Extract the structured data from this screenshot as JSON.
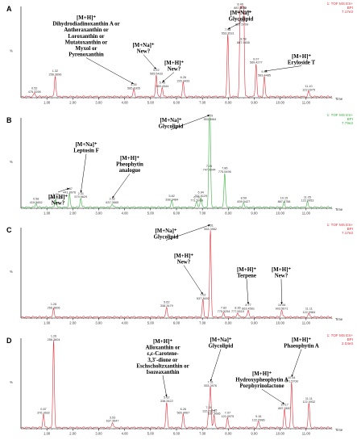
{
  "chart_data": [
    {
      "type": "line",
      "panel_label": "A",
      "color": "#e0303a",
      "header": [
        "1: TOF MS ES+",
        "BPI",
        "7.17e3"
      ],
      "y_axis_label": "%",
      "x_axis_label": "Time",
      "xlim": [
        0,
        12
      ],
      "ylim": [
        0,
        100
      ],
      "x_ticks": [
        "1.00",
        "2.00",
        "3.00",
        "4.00",
        "5.00",
        "6.00",
        "7.00",
        "8.00",
        "9.00",
        "10.00",
        "11.00"
      ],
      "peaks": [
        {
          "x": 0.52,
          "y": 4,
          "label": [
            "0.52",
            "475.3298"
          ]
        },
        {
          "x": 1.32,
          "y": 23,
          "label": [
            "1.32",
            "256.3696"
          ]
        },
        {
          "x": 4.35,
          "y": 8,
          "label": [
            "4.35",
            "585.4305"
          ]
        },
        {
          "x": 5.22,
          "y": 24,
          "label": [
            "5.22",
            "565.5433"
          ]
        },
        {
          "x": 5.45,
          "y": 10,
          "label": [
            "5.45",
            "569.4344"
          ]
        },
        {
          "x": 6.26,
          "y": 16,
          "label": [
            "6.26",
            "226.3433"
          ]
        },
        {
          "x": 7.98,
          "y": 68,
          "label": [
            "7.98",
            "553.3531"
          ]
        },
        {
          "x": 8.46,
          "y": 96,
          "label": [
            "8.46",
            "887.5772"
          ]
        },
        {
          "x": 8.52,
          "y": 78,
          "label": [
            "8.52",
            "887.5709"
          ]
        },
        {
          "x": 8.58,
          "y": 92,
          "label": [
            "8.58",
            "887.5648"
          ]
        },
        {
          "x": 8.58,
          "y": 58,
          "label": [
            "8.58",
            "887.5635"
          ]
        },
        {
          "x": 9.07,
          "y": 36,
          "label": [
            "9.07",
            "569.4277"
          ]
        },
        {
          "x": 9.39,
          "y": 22,
          "label": [
            "9.39",
            "583.4485"
          ]
        },
        {
          "x": 11.1,
          "y": 6,
          "label": [
            "11.10",
            "122.0975"
          ]
        }
      ],
      "annotations": [
        {
          "lines": [
            "[M+H]⁺",
            "Dihydrodiadinoxanthin A or",
            "Antheraxanthin or",
            "Loroxanthin or",
            "Mutatoxanthin or",
            "Myxol or",
            "Pyrenoxanthin"
          ],
          "arrow_to_x": 4.35
        },
        {
          "lines": [
            "[M+Na]⁺",
            "New?"
          ],
          "arrow_to_x": 5.22
        },
        {
          "lines": [
            "[M+H]⁺",
            "New?"
          ],
          "arrow_to_x": 5.45
        },
        {
          "lines": [
            "[M+Na]⁺",
            "Glycolipid"
          ],
          "arrow_to_x": 7.98
        },
        {
          "lines": [
            "[M+H]⁺",
            "Eryloside T"
          ],
          "arrow_to_x": 9.39
        }
      ]
    },
    {
      "type": "line",
      "panel_label": "B",
      "color": "#3cb043",
      "header": [
        "1: TOF MS ES+",
        "BPI",
        "7.79e3"
      ],
      "y_axis_label": "%",
      "x_axis_label": "Time",
      "xlim": [
        0,
        12
      ],
      "ylim": [
        0,
        100
      ],
      "x_ticks": [
        "1.00",
        "2.00",
        "3.00",
        "4.00",
        "5.00",
        "6.00",
        "7.00",
        "8.00",
        "9.00",
        "10.00",
        "11.00"
      ],
      "peaks": [
        {
          "x": 0.58,
          "y": 4,
          "label": [
            "0.58",
            "419.5652"
          ]
        },
        {
          "x": 1.34,
          "y": 9,
          "label": [
            "1.34",
            "256.3614"
          ]
        },
        {
          "x": 1.87,
          "y": 15,
          "label": [
            "1.87",
            "441.8976"
          ]
        },
        {
          "x": 2.31,
          "y": 10,
          "label": [
            "2.31",
            "579.9629"
          ]
        },
        {
          "x": 3.52,
          "y": 4,
          "label": [
            "3.52",
            "637.3665"
          ]
        },
        {
          "x": 5.82,
          "y": 7,
          "label": [
            "5.82",
            "338.3484"
          ]
        },
        {
          "x": 6.78,
          "y": 6,
          "label": [
            "6.78",
            "771.5039"
          ]
        },
        {
          "x": 6.94,
          "y": 11,
          "label": [
            "6.94",
            "797.5129"
          ]
        },
        {
          "x": 7.29,
          "y": 96,
          "label": [
            "7.29",
            "553.3964"
          ]
        },
        {
          "x": 7.26,
          "y": 40,
          "label": [
            "7.26",
            "747.5044"
          ]
        },
        {
          "x": 7.86,
          "y": 38,
          "label": [
            "7.86",
            "775.5496"
          ]
        },
        {
          "x": 8.59,
          "y": 5,
          "label": [
            "8.59",
            "839.5427"
          ]
        },
        {
          "x": 10.15,
          "y": 5,
          "label": [
            "10.15",
            "887.5758"
          ]
        },
        {
          "x": 11.05,
          "y": 6,
          "label": [
            "11.05",
            "122.0953"
          ]
        }
      ],
      "annotations": [
        {
          "lines": [
            "[M+Na]⁺",
            "Glycolipid"
          ],
          "arrow_to_x": 7.29
        },
        {
          "lines": [
            "[M+Na]⁺",
            "Leptosin F"
          ],
          "arrow_to_x": 2.31
        },
        {
          "lines": [
            "[M+H]⁺",
            "New?"
          ],
          "arrow_to_x": 1.87
        },
        {
          "lines": [
            "[M+H]⁺",
            "Pheophytin",
            "analogue"
          ],
          "arrow_to_x": 3.52
        }
      ]
    },
    {
      "type": "line",
      "panel_label": "C",
      "color": "#e0303a",
      "header": [
        "1: TOF MS ES+",
        "BPI",
        "7.17e3"
      ],
      "y_axis_label": "%",
      "x_axis_label": "Time",
      "xlim": [
        0,
        12
      ],
      "ylim": [
        0,
        100
      ],
      "x_ticks": [
        "1.00",
        "2.00",
        "3.00",
        "4.00",
        "5.00",
        "6.00",
        "7.00",
        "8.00",
        "9.00",
        "10.00",
        "11.00"
      ],
      "peaks": [
        {
          "x": 1.26,
          "y": 9,
          "label": [
            "1.26",
            "256.3606"
          ]
        },
        {
          "x": 5.62,
          "y": 11,
          "label": [
            "5.62",
            "338.3479"
          ]
        },
        {
          "x": 7.02,
          "y": 19,
          "label": [
            "7.02",
            "537.3692"
          ]
        },
        {
          "x": 7.31,
          "y": 96,
          "label": [
            "7.31",
            "553.3962"
          ]
        },
        {
          "x": 7.82,
          "y": 5,
          "label": [
            "7.82",
            "775.5254"
          ]
        },
        {
          "x": 8.36,
          "y": 5,
          "label": [
            "8.36",
            "777.5515"
          ]
        },
        {
          "x": 8.77,
          "y": 8,
          "label": [
            "8.77",
            "663.4561"
          ]
        },
        {
          "x": 10.06,
          "y": 8,
          "label": [
            "10.06",
            "903.5671"
          ]
        },
        {
          "x": 11.11,
          "y": 4,
          "label": [
            "11.11",
            "122.0984"
          ]
        }
      ],
      "annotations": [
        {
          "lines": [
            "[M+Na]⁺",
            "Glycolipid"
          ],
          "arrow_to_x": 7.31
        },
        {
          "lines": [
            "[M+H]⁺",
            "New?"
          ],
          "arrow_to_x": 7.02
        },
        {
          "lines": [
            "[M+H]⁺",
            "Terpene"
          ],
          "arrow_to_x": 8.77
        },
        {
          "lines": [
            "[M+H]⁺",
            "New?"
          ],
          "arrow_to_x": 10.06
        }
      ]
    },
    {
      "type": "line",
      "panel_label": "D",
      "color": "#e0303a",
      "header": [
        "1: TOF MS ES+",
        "BPI",
        "2.04e3"
      ],
      "y_axis_label": "%",
      "x_axis_label": "Time",
      "xlim": [
        0,
        12
      ],
      "ylim": [
        0,
        100
      ],
      "x_ticks": [
        "1.00",
        "2.00",
        "3.00",
        "4.00",
        "5.00",
        "6.00",
        "7.00",
        "8.00",
        "9.00",
        "10.00",
        "11.00"
      ],
      "peaks": [
        {
          "x": 0.87,
          "y": 15,
          "label": [
            "0.87",
            "376.3632"
          ]
        },
        {
          "x": 1.26,
          "y": 96,
          "label": [
            "1.26",
            "256.3604"
          ]
        },
        {
          "x": 3.53,
          "y": 6,
          "label": [
            "3.53",
            "637.3647"
          ]
        },
        {
          "x": 5.62,
          "y": 28,
          "label": [
            "5.62",
            "338.3422"
          ]
        },
        {
          "x": 6.26,
          "y": 15,
          "label": [
            "6.26",
            "565.4067"
          ]
        },
        {
          "x": 7.31,
          "y": 45,
          "label": [
            "7.31",
            "553.3976"
          ]
        },
        {
          "x": 7.24,
          "y": 17,
          "label": [
            "7.24",
            "122.0975"
          ]
        },
        {
          "x": 7.45,
          "y": 14,
          "label": [
            "7.45",
            "537.3686"
          ]
        },
        {
          "x": 7.97,
          "y": 11,
          "label": [
            "7.97",
            "120.0975"
          ]
        },
        {
          "x": 9.16,
          "y": 7,
          "label": [
            "9.16",
            "122.0986"
          ]
        },
        {
          "x": 10.17,
          "y": 20,
          "label": [
            "10.17",
            "887.5657"
          ]
        },
        {
          "x": 10.44,
          "y": 50,
          "label": [
            "10.44",
            "871.5708"
          ]
        },
        {
          "x": 11.11,
          "y": 27,
          "label": [
            "11.11",
            "122.0932"
          ]
        }
      ],
      "annotations": [
        {
          "lines": [
            "[M+H]⁺",
            "Alloxanthin or",
            "ε,ε-Carotene-",
            "3,3'-dione or",
            "Eschscholtzxanthin or",
            "Isozeaxanthin"
          ],
          "arrow_to_x": 5.62
        },
        {
          "lines": [
            "[M+Na]⁺",
            "Glycolipid"
          ],
          "arrow_to_x": 7.31
        },
        {
          "lines": [
            "[M+H]⁺",
            "Hydroxypheophytin A",
            "Porphyrinolactone"
          ],
          "arrow_to_x": 10.17
        },
        {
          "lines": [
            "[M+H]⁺",
            "Phaeophytin A"
          ],
          "arrow_to_x": 10.44
        }
      ]
    }
  ]
}
